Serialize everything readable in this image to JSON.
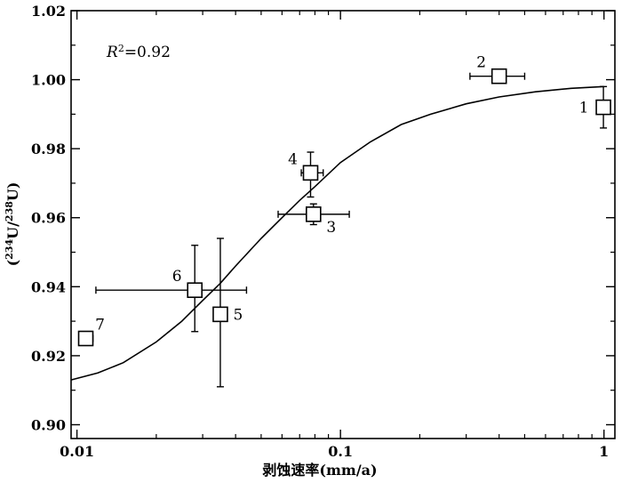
{
  "chart_data": {
    "type": "scatter",
    "xlabel": "剥蚀速率(mm/a)",
    "ylabel_parts": {
      "open": "(",
      "sup1": "234",
      "mid": "U/",
      "sup2": "238",
      "close": "U)"
    },
    "x_scale": "log",
    "xlim": [
      0.0095,
      1.1
    ],
    "ylim": [
      0.896,
      1.02
    ],
    "x_ticks": [
      {
        "value": 0.01,
        "label": "0.01"
      },
      {
        "value": 0.1,
        "label": "0.1"
      },
      {
        "value": 1,
        "label": "1"
      }
    ],
    "y_ticks": [
      {
        "value": 0.9,
        "label": "0.90"
      },
      {
        "value": 0.92,
        "label": "0.92"
      },
      {
        "value": 0.94,
        "label": "0.94"
      },
      {
        "value": 0.96,
        "label": "0.96"
      },
      {
        "value": 0.98,
        "label": "0.98"
      },
      {
        "value": 1.0,
        "label": "1.00"
      },
      {
        "value": 1.02,
        "label": "1.02"
      }
    ],
    "annotation": {
      "r_italic": "R",
      "sup": "2",
      "rest": "=0.92"
    },
    "grid": false,
    "points": [
      {
        "label": "1",
        "x": 0.995,
        "y": 0.992,
        "xerr": [
          0.995,
          0.995
        ],
        "yerr": [
          0.986,
          0.998
        ],
        "label_side": "left"
      },
      {
        "label": "2",
        "x": 0.4,
        "y": 1.001,
        "xerr": [
          0.31,
          0.5
        ],
        "yerr": [
          0.999,
          1.003
        ],
        "label_side": "upper-left"
      },
      {
        "label": "3",
        "x": 0.079,
        "y": 0.961,
        "xerr": [
          0.058,
          0.108
        ],
        "yerr": [
          0.958,
          0.964
        ],
        "label_side": "lower-right"
      },
      {
        "label": "4",
        "x": 0.077,
        "y": 0.973,
        "xerr": [
          0.071,
          0.086
        ],
        "yerr": [
          0.966,
          0.979
        ],
        "label_side": "upper-left"
      },
      {
        "label": "5",
        "x": 0.035,
        "y": 0.932,
        "xerr": [
          0.035,
          0.035
        ],
        "yerr": [
          0.911,
          0.954
        ],
        "label_side": "right"
      },
      {
        "label": "6",
        "x": 0.028,
        "y": 0.939,
        "xerr": [
          0.0118,
          0.044
        ],
        "yerr": [
          0.927,
          0.952
        ],
        "label_side": "upper-left"
      },
      {
        "label": "7",
        "x": 0.0108,
        "y": 0.925,
        "xerr": [
          0.0102,
          0.0115
        ],
        "yerr": [
          0.925,
          0.925
        ],
        "label_side": "upper-right"
      }
    ],
    "fit_curve": {
      "x": [
        0.0095,
        0.012,
        0.015,
        0.02,
        0.025,
        0.03,
        0.035,
        0.04,
        0.05,
        0.06,
        0.07,
        0.08,
        0.1,
        0.13,
        0.17,
        0.22,
        0.3,
        0.4,
        0.55,
        0.75,
        1.0
      ],
      "y": [
        0.913,
        0.915,
        0.918,
        0.924,
        0.93,
        0.936,
        0.941,
        0.946,
        0.954,
        0.96,
        0.965,
        0.969,
        0.976,
        0.982,
        0.987,
        0.99,
        0.993,
        0.995,
        0.9965,
        0.9975,
        0.998
      ]
    }
  }
}
